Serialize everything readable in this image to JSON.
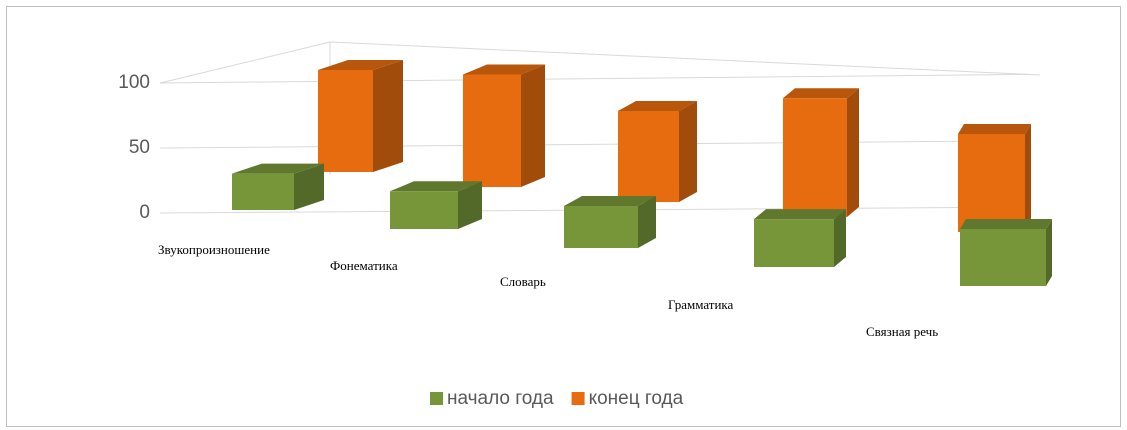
{
  "chart_data": {
    "type": "bar3d",
    "categories": [
      "Звукопроизношение",
      "Фонематика",
      "Словарь",
      "Грамматика",
      "Связная речь"
    ],
    "series": [
      {
        "name": "начало года",
        "color": "#77963a",
        "values": [
          28,
          28,
          30,
          33,
          38
        ]
      },
      {
        "name": "конец года",
        "color": "#e66c0f",
        "values": [
          85,
          90,
          70,
          88,
          70
        ]
      }
    ],
    "ylim": [
      0,
      100
    ],
    "yticks": [
      0,
      50,
      100
    ],
    "grid": true,
    "legend": "bottom"
  }
}
